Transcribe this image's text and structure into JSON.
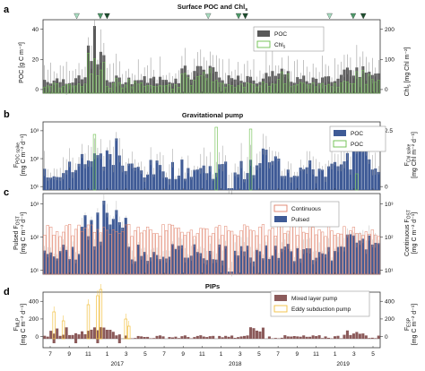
{
  "chart_data": {
    "type": "bar",
    "x_ticks": [
      "7",
      "9",
      "11",
      "1",
      "3",
      "5",
      "7",
      "9",
      "11",
      "1",
      "3",
      "5",
      "7",
      "9",
      "11",
      "1",
      "3",
      "5"
    ],
    "years": [
      "2017",
      "2018",
      "2019"
    ],
    "markers": {
      "light": [
        0.1,
        0.49,
        0.85
      ],
      "mid": [
        0.17,
        0.58,
        0.92
      ],
      "dark": [
        0.19,
        0.6,
        0.95
      ]
    },
    "panels": [
      {
        "letter": "a",
        "title": "Surface POC and Chl",
        "title_sub": "s",
        "ylabel_left": "POC [g C m⁻²]",
        "ylabel_right": "Chl",
        "ylabel_right_sub": "s",
        "ylabel_right_tail": " [mg Chl m⁻²]",
        "left_ticks": [
          "0",
          "20",
          "40"
        ],
        "right_ticks": [
          "0",
          "100",
          "200"
        ],
        "legend": [
          "POC",
          "Chl"
        ],
        "legend_sub": [
          "",
          "s"
        ]
      },
      {
        "letter": "b",
        "title": "Gravitational pump",
        "ylabel_left": "F",
        "ylabel_left_sub": "POC spike",
        "ylabel_left2": "[mg C m⁻² d⁻¹]",
        "ylabel_right": "F",
        "ylabel_right_sub": "Chl spike",
        "ylabel_right2": "[mg Chl m⁻² d⁻¹]",
        "left_ticks": [
          "10¹",
          "10²",
          "10³"
        ],
        "right_ticks": [
          "0",
          "2.5"
        ],
        "legend": [
          "POC",
          "Chl"
        ],
        "legend_sub": [
          "",
          "s"
        ]
      },
      {
        "letter": "c",
        "title": "",
        "ylabel_left": "Pulsed F",
        "ylabel_left_sub": "OST",
        "ylabel_left2": "[mg C m⁻² d⁻¹]",
        "ylabel_right": "Continuous F",
        "ylabel_right_sub": "OST",
        "ylabel_right2": "[mg C m⁻² d⁻¹]",
        "left_ticks": [
          "10¹",
          "10²",
          "10³"
        ],
        "right_ticks": [
          "10¹",
          "10²",
          "10³"
        ],
        "legend": [
          "Continuous",
          "Pulsed"
        ]
      },
      {
        "letter": "d",
        "title": "PIPs",
        "ylabel_left": "F",
        "ylabel_left_sub": "MLP",
        "ylabel_left2": "[mg C m⁻² d⁻¹]",
        "ylabel_right": "F",
        "ylabel_right_sub": "ESP",
        "ylabel_right2": "[mg C m⁻² d⁻¹]",
        "left_ticks": [
          "0",
          "200",
          "400"
        ],
        "right_ticks": [
          "0",
          "200",
          "400"
        ],
        "legend": [
          "Mixed layer pump",
          "Eddy subduction pump"
        ]
      }
    ],
    "colors": {
      "poc_a": "#595959",
      "chl": "#6abf4b",
      "poc_b": "#3e5a96",
      "continuous": "#e0826a",
      "pulsed": "#3e5a96",
      "mlp": "#8b5a5a",
      "esp": "#f2c040",
      "marker_light": "#a8dcc0",
      "marker_mid": "#4f9a6a",
      "marker_dark": "#1f4f2f"
    }
  }
}
